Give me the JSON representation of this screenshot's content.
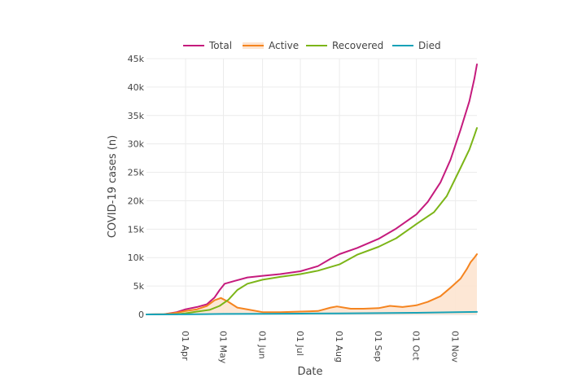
{
  "chart_data": {
    "type": "line",
    "xlabel": "Date",
    "ylabel": "COVID-19 cases (n)",
    "x_ticks": [
      {
        "date": "2020-04-01",
        "label": "01 Apr"
      },
      {
        "date": "2020-05-01",
        "label": "01 May"
      },
      {
        "date": "2020-06-01",
        "label": "01 Jun"
      },
      {
        "date": "2020-07-01",
        "label": "01 Jul"
      },
      {
        "date": "2020-08-01",
        "label": "01 Aug"
      },
      {
        "date": "2020-09-01",
        "label": "01 Sep"
      },
      {
        "date": "2020-10-01",
        "label": "01 Oct"
      },
      {
        "date": "2020-11-01",
        "label": "01 Nov"
      }
    ],
    "y_ticks": [
      {
        "value": 0,
        "label": "0"
      },
      {
        "value": 5000,
        "label": "5k"
      },
      {
        "value": 10000,
        "label": "10k"
      },
      {
        "value": 15000,
        "label": "15k"
      },
      {
        "value": 20000,
        "label": "20k"
      },
      {
        "value": 25000,
        "label": "25k"
      },
      {
        "value": 30000,
        "label": "30k"
      },
      {
        "value": 35000,
        "label": "35k"
      },
      {
        "value": 40000,
        "label": "40k"
      },
      {
        "value": 45000,
        "label": "45k"
      }
    ],
    "xlim": [
      "2020-03-01",
      "2020-11-18"
    ],
    "ylim": [
      0,
      45000
    ],
    "grid": true,
    "legend_position": "top",
    "series": [
      {
        "name": "Total",
        "color": "#c51b7d",
        "fill": false,
        "points": [
          [
            "2020-03-01",
            0
          ],
          [
            "2020-03-15",
            50
          ],
          [
            "2020-03-25",
            400
          ],
          [
            "2020-04-01",
            900
          ],
          [
            "2020-04-10",
            1300
          ],
          [
            "2020-04-18",
            1800
          ],
          [
            "2020-04-24",
            3000
          ],
          [
            "2020-04-28",
            4300
          ],
          [
            "2020-05-02",
            5400
          ],
          [
            "2020-05-10",
            5900
          ],
          [
            "2020-05-20",
            6500
          ],
          [
            "2020-06-01",
            6800
          ],
          [
            "2020-06-15",
            7100
          ],
          [
            "2020-07-01",
            7600
          ],
          [
            "2020-07-15",
            8500
          ],
          [
            "2020-07-25",
            9800
          ],
          [
            "2020-08-01",
            10600
          ],
          [
            "2020-08-15",
            11700
          ],
          [
            "2020-09-01",
            13300
          ],
          [
            "2020-09-15",
            15100
          ],
          [
            "2020-10-01",
            17600
          ],
          [
            "2020-10-10",
            19800
          ],
          [
            "2020-10-20",
            23200
          ],
          [
            "2020-10-28",
            27200
          ],
          [
            "2020-11-05",
            32500
          ],
          [
            "2020-11-12",
            37500
          ],
          [
            "2020-11-16",
            41500
          ],
          [
            "2020-11-18",
            44000
          ]
        ]
      },
      {
        "name": "Active",
        "color": "#f5841f",
        "fill": true,
        "fill_color": "#fde4d0",
        "points": [
          [
            "2020-03-01",
            0
          ],
          [
            "2020-03-15",
            50
          ],
          [
            "2020-03-25",
            300
          ],
          [
            "2020-04-01",
            600
          ],
          [
            "2020-04-10",
            900
          ],
          [
            "2020-04-18",
            1500
          ],
          [
            "2020-04-24",
            2500
          ],
          [
            "2020-04-29",
            2900
          ],
          [
            "2020-05-05",
            2200
          ],
          [
            "2020-05-12",
            1200
          ],
          [
            "2020-05-22",
            800
          ],
          [
            "2020-06-01",
            400
          ],
          [
            "2020-06-15",
            400
          ],
          [
            "2020-07-01",
            500
          ],
          [
            "2020-07-15",
            600
          ],
          [
            "2020-07-25",
            1200
          ],
          [
            "2020-07-30",
            1400
          ],
          [
            "2020-08-10",
            1000
          ],
          [
            "2020-08-20",
            1000
          ],
          [
            "2020-09-01",
            1100
          ],
          [
            "2020-09-10",
            1500
          ],
          [
            "2020-09-20",
            1300
          ],
          [
            "2020-10-01",
            1600
          ],
          [
            "2020-10-10",
            2200
          ],
          [
            "2020-10-20",
            3200
          ],
          [
            "2020-10-28",
            4700
          ],
          [
            "2020-11-05",
            6300
          ],
          [
            "2020-11-10",
            8000
          ],
          [
            "2020-11-13",
            9200
          ],
          [
            "2020-11-16",
            10000
          ],
          [
            "2020-11-18",
            10600
          ]
        ]
      },
      {
        "name": "Recovered",
        "color": "#7cb518",
        "fill": false,
        "points": [
          [
            "2020-03-01",
            0
          ],
          [
            "2020-03-25",
            50
          ],
          [
            "2020-04-01",
            200
          ],
          [
            "2020-04-10",
            500
          ],
          [
            "2020-04-20",
            800
          ],
          [
            "2020-04-28",
            1500
          ],
          [
            "2020-05-05",
            2600
          ],
          [
            "2020-05-12",
            4300
          ],
          [
            "2020-05-20",
            5400
          ],
          [
            "2020-06-01",
            6100
          ],
          [
            "2020-06-15",
            6600
          ],
          [
            "2020-07-01",
            7100
          ],
          [
            "2020-07-15",
            7700
          ],
          [
            "2020-08-01",
            8800
          ],
          [
            "2020-08-15",
            10500
          ],
          [
            "2020-09-01",
            11900
          ],
          [
            "2020-09-15",
            13400
          ],
          [
            "2020-10-01",
            15900
          ],
          [
            "2020-10-15",
            18000
          ],
          [
            "2020-10-25",
            20800
          ],
          [
            "2020-11-05",
            25800
          ],
          [
            "2020-11-12",
            29000
          ],
          [
            "2020-11-16",
            31500
          ],
          [
            "2020-11-18",
            32800
          ]
        ]
      },
      {
        "name": "Died",
        "color": "#17a2b8",
        "fill": false,
        "points": [
          [
            "2020-03-01",
            0
          ],
          [
            "2020-04-01",
            10
          ],
          [
            "2020-05-01",
            80
          ],
          [
            "2020-06-01",
            120
          ],
          [
            "2020-07-01",
            150
          ],
          [
            "2020-08-01",
            190
          ],
          [
            "2020-09-01",
            230
          ],
          [
            "2020-10-01",
            280
          ],
          [
            "2020-11-01",
            380
          ],
          [
            "2020-11-18",
            450
          ]
        ]
      }
    ]
  }
}
